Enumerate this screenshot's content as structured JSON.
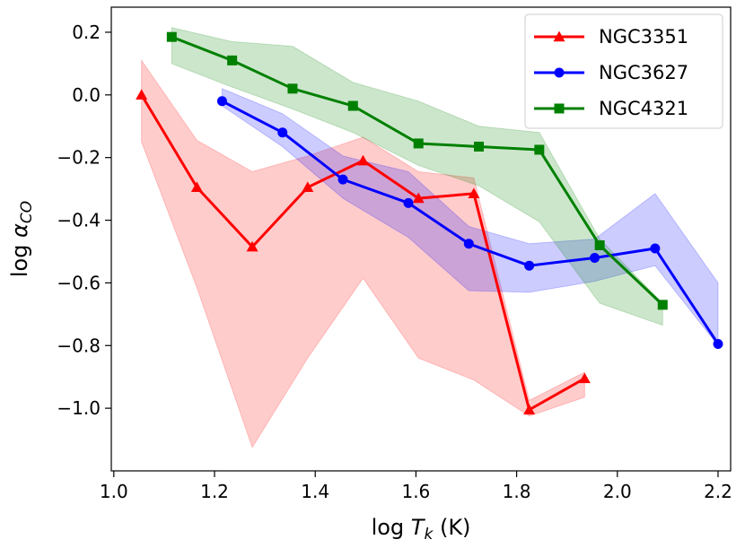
{
  "chart_data": {
    "type": "line",
    "title": "",
    "xlabel": {
      "prefix": "log  ",
      "var": "T",
      "sub": "k",
      "suffix": " (K)"
    },
    "ylabel": {
      "prefix": "log  ",
      "var": "α",
      "sub": "CO"
    },
    "xlim": [
      0.995,
      2.225
    ],
    "ylim": [
      -1.2,
      0.28
    ],
    "xticks": [
      1.0,
      1.2,
      1.4,
      1.6,
      1.8,
      2.0,
      2.2
    ],
    "xtick_labels": [
      "1.0",
      "1.2",
      "1.4",
      "1.6",
      "1.8",
      "2.0",
      "2.2"
    ],
    "yticks": [
      0.2,
      0.0,
      -0.2,
      -0.4,
      -0.6,
      -0.8,
      -1.0
    ],
    "ytick_labels": [
      "0.2",
      "0.0",
      "−0.2",
      "−0.4",
      "−0.6",
      "−0.8",
      "−1.0"
    ],
    "legend_position": "top-right",
    "series": [
      {
        "name": "NGC3351",
        "color": "#ff0000",
        "marker": "triangle",
        "x": [
          1.055,
          1.165,
          1.275,
          1.385,
          1.495,
          1.605,
          1.715,
          1.825,
          1.935
        ],
        "y": [
          0.0,
          -0.295,
          -0.485,
          -0.295,
          -0.21,
          -0.33,
          -0.315,
          -1.005,
          -0.905
        ],
        "band_upper": [
          0.11,
          -0.145,
          -0.245,
          -0.195,
          -0.135,
          -0.245,
          -0.265,
          -0.975,
          -0.885
        ],
        "band_lower": [
          -0.15,
          -0.615,
          -1.125,
          -0.84,
          -0.585,
          -0.84,
          -0.91,
          -1.025,
          -0.965
        ]
      },
      {
        "name": "NGC3627",
        "color": "#0000ff",
        "marker": "circle",
        "x": [
          1.215,
          1.335,
          1.455,
          1.585,
          1.705,
          1.825,
          1.955,
          2.075,
          2.2
        ],
        "y": [
          -0.02,
          -0.12,
          -0.27,
          -0.345,
          -0.475,
          -0.545,
          -0.52,
          -0.49,
          -0.795
        ],
        "band_upper": [
          0.02,
          -0.06,
          -0.195,
          -0.245,
          -0.42,
          -0.475,
          -0.46,
          -0.315,
          -0.6
        ],
        "band_lower": [
          -0.035,
          -0.165,
          -0.33,
          -0.455,
          -0.625,
          -0.63,
          -0.595,
          -0.545,
          -0.8
        ]
      },
      {
        "name": "NGC4321",
        "color": "#008000",
        "marker": "square",
        "x": [
          1.115,
          1.235,
          1.355,
          1.475,
          1.605,
          1.725,
          1.845,
          1.965,
          2.09
        ],
        "y": [
          0.185,
          0.11,
          0.02,
          -0.035,
          -0.155,
          -0.165,
          -0.175,
          -0.48,
          -0.67
        ],
        "band_upper": [
          0.215,
          0.17,
          0.155,
          0.04,
          -0.02,
          -0.1,
          -0.12,
          -0.46,
          -0.665
        ],
        "band_lower": [
          0.1,
          0.025,
          -0.045,
          -0.12,
          -0.225,
          -0.29,
          -0.405,
          -0.665,
          -0.735
        ]
      }
    ]
  }
}
